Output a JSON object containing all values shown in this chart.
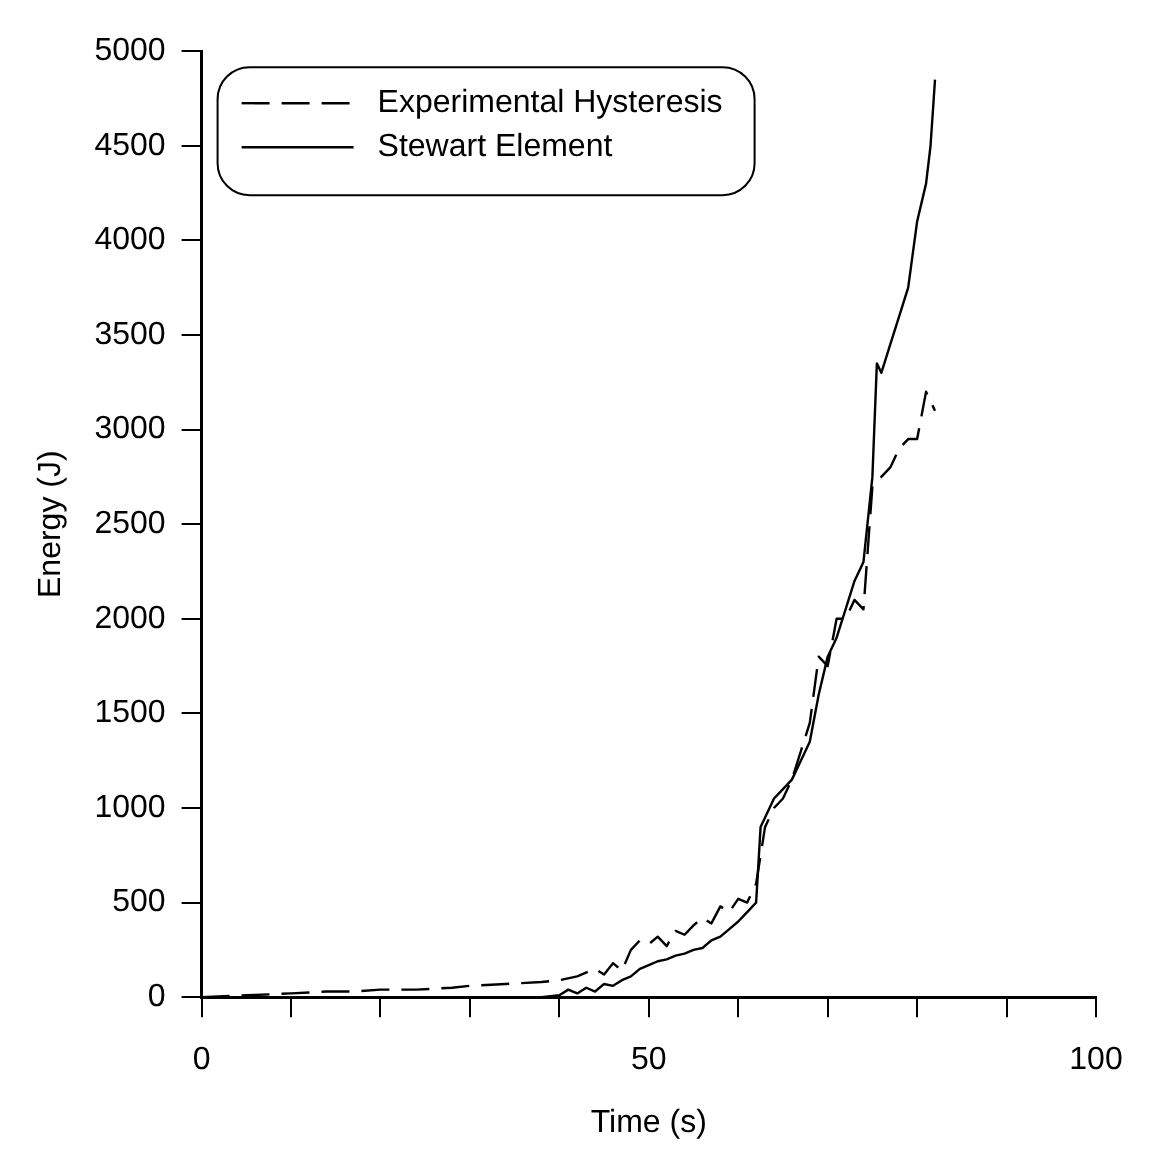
{
  "chart_data": {
    "type": "line",
    "xlabel": "Time (s)",
    "ylabel": "Energy (J)",
    "xlim": [
      0,
      100
    ],
    "ylim": [
      0,
      5000
    ],
    "xticks": [
      0,
      {
        "value": 10,
        "label": null
      },
      {
        "value": 20,
        "label": null
      },
      {
        "value": 30,
        "label": null
      },
      {
        "value": 40,
        "label": null
      },
      50,
      {
        "value": 60,
        "label": null
      },
      {
        "value": 70,
        "label": null
      },
      {
        "value": 80,
        "label": null
      },
      {
        "value": 90,
        "label": null
      },
      100
    ],
    "yticks": [
      0,
      500,
      1000,
      1500,
      2000,
      2500,
      3000,
      3500,
      4000,
      4500,
      5000
    ],
    "grid": false,
    "legend": "top left",
    "marker": "none",
    "series": [
      {
        "name": "Experimental Hysteresis",
        "color": "#000000",
        "line_style": "dashed",
        "x": [
          0,
          5,
          10,
          14,
          17,
          20,
          24,
          28,
          30,
          34,
          38,
          40,
          42,
          44,
          45,
          46,
          47,
          48,
          49,
          50,
          51,
          52,
          53,
          54,
          55,
          56,
          57,
          58,
          59,
          60,
          61,
          62,
          63,
          64,
          65,
          66,
          67,
          68,
          69,
          70,
          71,
          72,
          73,
          74,
          75,
          76,
          77,
          78,
          79,
          80,
          81,
          82
        ],
        "values": [
          0,
          10,
          20,
          30,
          30,
          40,
          40,
          50,
          60,
          70,
          80,
          90,
          110,
          150,
          120,
          180,
          140,
          250,
          300,
          280,
          320,
          270,
          350,
          330,
          380,
          420,
          390,
          480,
          450,
          520,
          500,
          600,
          900,
          1000,
          1050,
          1150,
          1300,
          1450,
          1800,
          1750,
          2000,
          2000,
          2100,
          2050,
          2700,
          2750,
          2800,
          2900,
          2950,
          2950,
          3200,
          3100
        ]
      },
      {
        "name": "Stewart Element",
        "color": "#000000",
        "line_style": "solid",
        "x": [
          0,
          10,
          20,
          30,
          38,
          40,
          41,
          42,
          43,
          44,
          45,
          46,
          47,
          48,
          49,
          50,
          51,
          52,
          53,
          54,
          55,
          56,
          57,
          58,
          59,
          60,
          61,
          62,
          62.5,
          63,
          64,
          65,
          66,
          67,
          68,
          69,
          70,
          71,
          72,
          73,
          74,
          75,
          75.5,
          76,
          77,
          78,
          79,
          80,
          81,
          81.5,
          82
        ],
        "values": [
          0,
          0,
          0,
          0,
          0,
          10,
          40,
          20,
          50,
          30,
          70,
          60,
          90,
          110,
          150,
          170,
          190,
          200,
          220,
          230,
          250,
          260,
          300,
          320,
          360,
          400,
          450,
          500,
          900,
          950,
          1050,
          1100,
          1150,
          1250,
          1350,
          1600,
          1800,
          1900,
          2050,
          2200,
          2300,
          2750,
          3350,
          3300,
          3450,
          3600,
          3750,
          4100,
          4300,
          4500,
          4850
        ]
      }
    ]
  }
}
